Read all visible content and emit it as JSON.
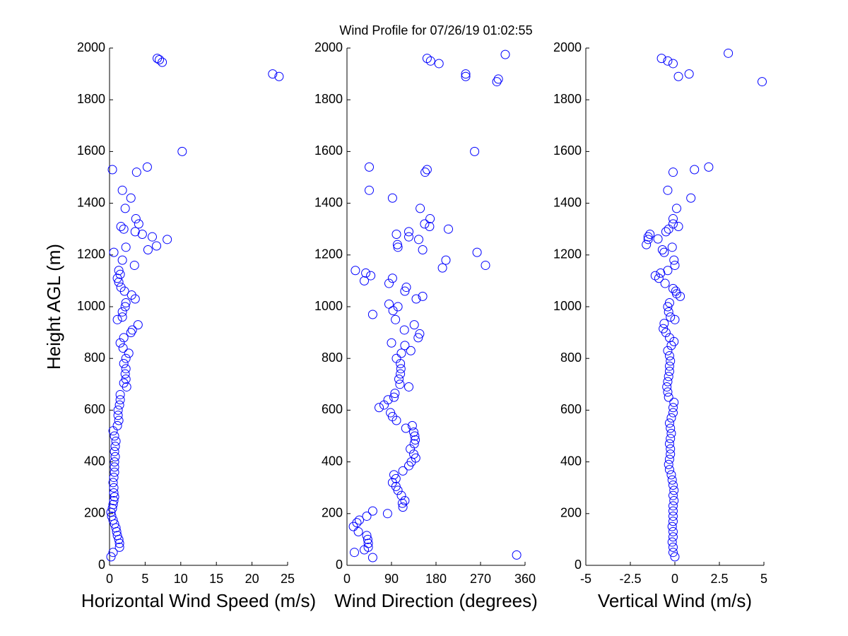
{
  "chart_data": [
    {
      "type": "scatter",
      "title": "Wind Profile for  07/26/19 01:02:55",
      "xlabel": "Horizontal Wind Speed (m/s)",
      "ylabel": "Height AGL (m)",
      "color": "#0000ff",
      "xlim": [
        0,
        25
      ],
      "xticks": [
        0,
        5,
        10,
        15,
        20,
        25
      ],
      "ylim": [
        0,
        2000
      ],
      "yticks": [
        0,
        200,
        400,
        600,
        800,
        1000,
        1200,
        1400,
        1600,
        1800,
        2000
      ],
      "x": [
        0.2,
        0.5,
        1.4,
        1.4,
        1.3,
        1.1,
        1.0,
        0.9,
        0.7,
        0.5,
        0.3,
        0.2,
        0.4,
        0.5,
        0.6,
        0.7,
        0.6,
        0.6,
        0.5,
        0.6,
        0.7,
        0.7,
        0.7,
        0.8,
        0.7,
        0.8,
        0.9,
        0.7,
        0.5,
        1.1,
        1.3,
        1.2,
        1.2,
        1.4,
        1.5,
        1.5,
        2.4,
        2.0,
        2.3,
        2.2,
        2.3,
        2.0,
        2.3,
        2.7,
        1.9,
        1.5,
        2.0,
        3.0,
        3.2,
        4.0,
        1.1,
        1.8,
        1.8,
        2.2,
        2.3,
        3.6,
        3.1,
        2.1,
        1.6,
        1.3,
        1.1,
        1.5,
        1.3,
        3.5,
        1.8,
        0.6,
        5.4,
        2.3,
        6.6,
        8.1,
        6.0,
        4.6,
        3.6,
        2.0,
        1.6,
        4.1,
        3.7,
        2.2,
        3.0,
        1.8,
        3.8,
        0.4,
        5.3,
        10.2,
        23.8,
        22.9,
        7.4,
        7.0,
        6.7
      ],
      "values": [
        33,
        50,
        70,
        85,
        100,
        115,
        130,
        145,
        160,
        175,
        190,
        205,
        220,
        235,
        250,
        265,
        280,
        300,
        320,
        340,
        360,
        380,
        400,
        420,
        440,
        460,
        480,
        500,
        520,
        540,
        560,
        580,
        600,
        620,
        640,
        660,
        690,
        705,
        720,
        740,
        760,
        780,
        800,
        820,
        840,
        860,
        880,
        900,
        910,
        930,
        950,
        960,
        980,
        1000,
        1015,
        1030,
        1045,
        1060,
        1075,
        1095,
        1110,
        1125,
        1140,
        1160,
        1180,
        1210,
        1220,
        1230,
        1235,
        1260,
        1270,
        1280,
        1290,
        1300,
        1310,
        1320,
        1340,
        1380,
        1420,
        1450,
        1520,
        1530,
        1540,
        1600,
        1890,
        1900,
        1945,
        1955,
        1960
      ]
    },
    {
      "type": "scatter",
      "xlabel": "Wind Direction (degrees)",
      "color": "#0000ff",
      "xlim": [
        0,
        360
      ],
      "xticks": [
        0,
        90,
        180,
        270,
        360
      ],
      "ylim": [
        0,
        2000
      ],
      "yticks": [
        0,
        200,
        400,
        600,
        800,
        1000,
        1200,
        1400,
        1600,
        1800,
        2000
      ],
      "x": [
        343,
        15,
        52,
        35,
        43,
        43,
        42,
        40,
        23,
        13,
        20,
        25,
        40,
        82,
        52,
        113,
        112,
        117,
        110,
        103,
        99,
        92,
        99,
        95,
        113,
        125,
        130,
        139,
        135,
        128,
        136,
        138,
        137,
        135,
        119,
        132,
        100,
        92,
        88,
        65,
        75,
        83,
        95,
        97,
        125,
        107,
        105,
        108,
        109,
        108,
        100,
        110,
        129,
        117,
        90,
        144,
        147,
        116,
        136,
        98,
        52,
        93,
        103,
        85,
        140,
        153,
        117,
        120,
        85,
        35,
        92,
        48,
        38,
        17,
        193,
        280,
        200,
        263,
        153,
        103,
        102,
        145,
        125,
        100,
        125,
        205,
        167,
        157,
        168,
        148,
        92,
        45,
        158,
        162,
        45,
        258,
        303,
        306,
        240,
        240,
        186,
        169,
        162,
        320
      ],
      "values": [
        40,
        50,
        30,
        60,
        70,
        85,
        100,
        115,
        130,
        150,
        165,
        175,
        190,
        200,
        210,
        225,
        240,
        250,
        270,
        290,
        305,
        320,
        335,
        350,
        365,
        385,
        400,
        415,
        430,
        450,
        470,
        485,
        500,
        515,
        530,
        540,
        560,
        575,
        590,
        610,
        620,
        640,
        650,
        665,
        690,
        700,
        720,
        740,
        760,
        780,
        800,
        820,
        830,
        850,
        860,
        880,
        895,
        910,
        930,
        950,
        970,
        985,
        1000,
        1010,
        1030,
        1040,
        1060,
        1075,
        1090,
        1100,
        1110,
        1120,
        1130,
        1140,
        1150,
        1160,
        1180,
        1210,
        1220,
        1230,
        1240,
        1260,
        1270,
        1280,
        1290,
        1300,
        1310,
        1320,
        1340,
        1380,
        1420,
        1450,
        1520,
        1530,
        1540,
        1600,
        1870,
        1880,
        1890,
        1900,
        1940,
        1950,
        1960,
        1975
      ]
    },
    {
      "type": "scatter",
      "xlabel": "Vertical Wind (m/s)",
      "color": "#0000ff",
      "xlim": [
        -5,
        5
      ],
      "xticks": [
        -5,
        -2.5,
        0,
        2.5,
        5
      ],
      "ylim": [
        0,
        2000
      ],
      "yticks": [
        0,
        200,
        400,
        600,
        800,
        1000,
        1200,
        1400,
        1600,
        1800,
        2000
      ],
      "x": [
        0,
        -0.1,
        -0.1,
        -0.15,
        -0.1,
        -0.1,
        -0.15,
        -0.1,
        -0.1,
        -0.1,
        -0.1,
        -0.05,
        -0.1,
        -0.05,
        -0.1,
        -0.15,
        -0.2,
        -0.3,
        -0.35,
        -0.3,
        -0.25,
        -0.25,
        -0.3,
        -0.25,
        -0.2,
        -0.25,
        -0.3,
        -0.2,
        -0.1,
        -0.1,
        -0.05,
        -0.35,
        -0.4,
        -0.45,
        -0.4,
        -0.35,
        -0.3,
        -0.3,
        -0.25,
        -0.3,
        -0.4,
        -0.2,
        -0.05,
        -0.3,
        -0.5,
        -0.65,
        -0.6,
        0,
        -0.25,
        -0.35,
        -0.4,
        -0.3,
        0.3,
        0.1,
        0.05,
        -0.1,
        -0.55,
        -0.9,
        -1.1,
        -0.8,
        -0.4,
        0,
        -0.05,
        -0.6,
        -0.7,
        -0.15,
        -1.6,
        -1.5,
        -0.95,
        -1.5,
        -1.4,
        -0.5,
        -0.35,
        0.2,
        -0.1,
        -0.1,
        0.1,
        0.9,
        -0.4,
        -0.1,
        1.1,
        1.9,
        4.9,
        0.2,
        0.8,
        -0.1,
        -0.4,
        -0.75,
        3.0
      ],
      "values": [
        33,
        50,
        70,
        90,
        110,
        130,
        150,
        170,
        190,
        210,
        230,
        250,
        270,
        290,
        310,
        330,
        350,
        370,
        390,
        410,
        430,
        450,
        470,
        490,
        510,
        530,
        550,
        570,
        590,
        610,
        630,
        650,
        670,
        690,
        710,
        730,
        750,
        770,
        790,
        810,
        830,
        850,
        865,
        880,
        900,
        915,
        935,
        950,
        960,
        980,
        1000,
        1015,
        1040,
        1050,
        1060,
        1070,
        1090,
        1110,
        1120,
        1130,
        1140,
        1160,
        1180,
        1210,
        1220,
        1230,
        1240,
        1260,
        1262,
        1270,
        1280,
        1290,
        1300,
        1310,
        1320,
        1340,
        1380,
        1420,
        1450,
        1520,
        1530,
        1540,
        1870,
        1890,
        1900,
        1940,
        1950,
        1960,
        1980
      ]
    }
  ]
}
